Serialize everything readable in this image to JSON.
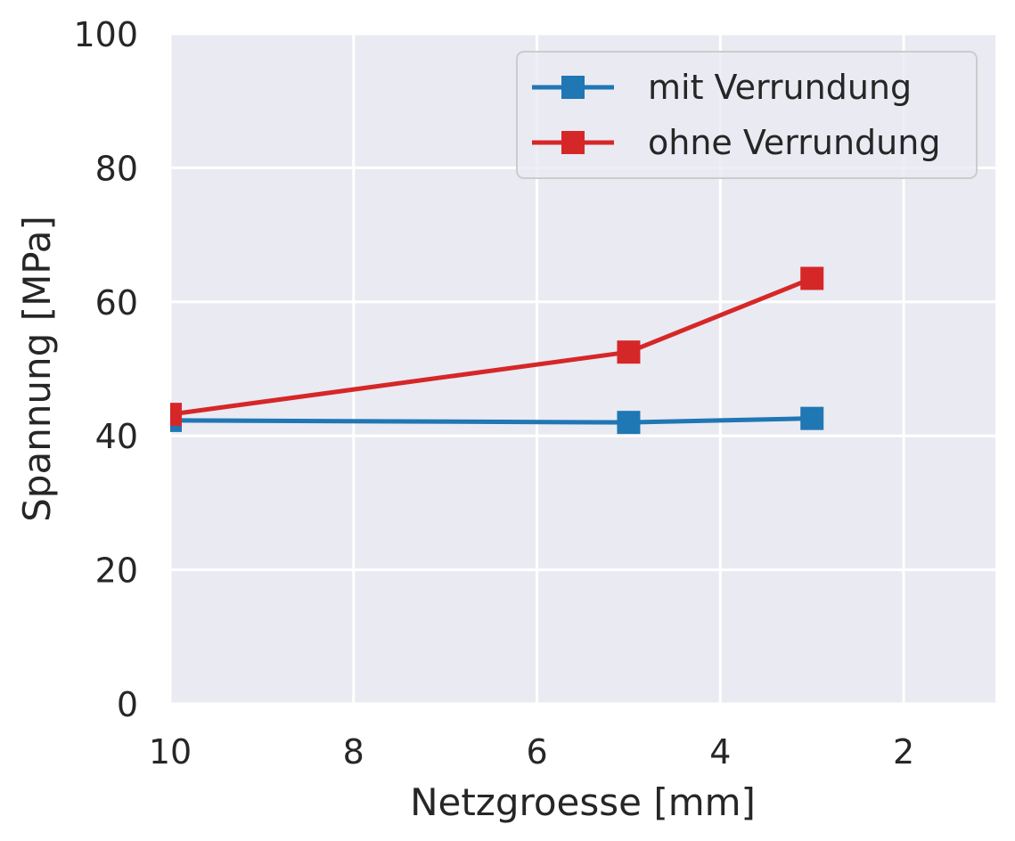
{
  "chart_data": {
    "type": "line",
    "title": "",
    "xlabel": "Netzgroesse [mm]",
    "ylabel": "Spannung [MPa]",
    "xlim": [
      10,
      1
    ],
    "ylim": [
      0,
      100
    ],
    "x_inverted": true,
    "x_ticks": [
      10,
      8,
      6,
      4,
      2
    ],
    "y_ticks": [
      0,
      20,
      40,
      60,
      80,
      100
    ],
    "x_tick_labels": [
      "10",
      "8",
      "6",
      "4",
      "2"
    ],
    "y_tick_labels": [
      "0",
      "20",
      "40",
      "60",
      "80",
      "100"
    ],
    "grid": true,
    "legend_position": "top-right",
    "marker": "square",
    "series": [
      {
        "name": "mit Verrundung",
        "color": "#1f77b4",
        "x": [
          10,
          5,
          3
        ],
        "y": [
          42.3,
          42.0,
          42.6
        ]
      },
      {
        "name": "ohne Verrundung",
        "color": "#d62728",
        "x": [
          10,
          5,
          3
        ],
        "y": [
          43.2,
          52.5,
          63.5
        ]
      }
    ]
  }
}
